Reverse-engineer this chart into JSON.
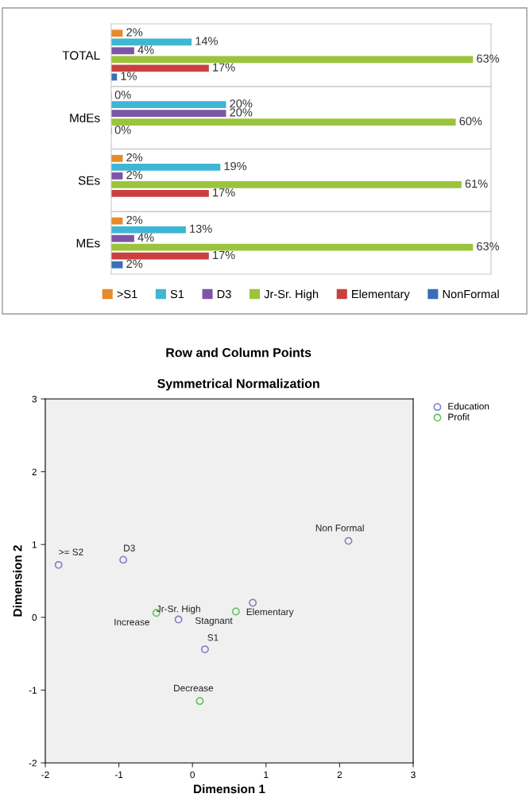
{
  "chart_data": [
    {
      "type": "bar",
      "orientation": "horizontal",
      "categories": [
        "TOTAL",
        "MdEs",
        "SEs",
        "MEs"
      ],
      "legend": "bottom",
      "series": [
        {
          "name": ">S1",
          "color": "#e8892a",
          "values": [
            2,
            0,
            2,
            2
          ],
          "value_labels": [
            "2%",
            "0%",
            "2%",
            "2%"
          ]
        },
        {
          "name": "S1",
          "color": "#3fb6d3",
          "values": [
            14,
            20,
            19,
            13
          ],
          "value_labels": [
            "14%",
            "20%",
            "19%",
            "13%"
          ]
        },
        {
          "name": "D3",
          "color": "#7d55a6",
          "values": [
            4,
            20,
            2,
            4
          ],
          "value_labels": [
            "4%",
            "20%",
            "2%",
            "4%"
          ]
        },
        {
          "name": "Jr-Sr. High",
          "color": "#9bc43c",
          "values": [
            63,
            60,
            61,
            63
          ],
          "value_labels": [
            "63%",
            "60%",
            "61%",
            "63%"
          ]
        },
        {
          "name": "Elementary",
          "color": "#c9403f",
          "values": [
            17,
            0,
            17,
            17
          ],
          "value_labels": [
            "17%",
            "0%",
            "17%",
            "17%"
          ]
        },
        {
          "name": "NonFormal",
          "color": "#3a6fb6",
          "values": [
            1,
            null,
            null,
            2
          ],
          "value_labels": [
            "1%",
            null,
            null,
            "2%"
          ]
        }
      ]
    },
    {
      "type": "scatter",
      "title": "Row and Column Points",
      "subtitle": "Symmetrical Normalization",
      "xlabel": "Dimension 1",
      "ylabel": "Dimension 2",
      "xlim": [
        -2,
        3
      ],
      "ylim": [
        -2,
        3
      ],
      "xticks": [
        -2,
        -1,
        0,
        1,
        2,
        3
      ],
      "yticks": [
        -2,
        -1,
        0,
        1,
        2,
        3
      ],
      "marker": "circle",
      "legend": "top right",
      "grid": false,
      "series": [
        {
          "name": "Education",
          "color": "#7b7fc4",
          "x": [
            -1.82,
            -0.94,
            -0.19,
            0.17,
            0.82,
            2.12
          ],
          "values": [
            0.72,
            0.79,
            -0.03,
            -0.44,
            0.2,
            1.05
          ]
        },
        {
          "name": "Profit",
          "color": "#5fbf5f",
          "x": [
            -0.49,
            0.59,
            0.1
          ],
          "values": [
            0.06,
            0.08,
            -1.15
          ]
        }
      ],
      "annotations": [
        {
          "text": ">= S2",
          "x": -1.82,
          "y": 0.72
        },
        {
          "text": "D3",
          "x": -0.94,
          "y": 0.79
        },
        {
          "text": "Jr-Sr. High",
          "x": -0.19,
          "y": -0.03
        },
        {
          "text": "S1",
          "x": 0.17,
          "y": -0.44
        },
        {
          "text": "Elementary",
          "x": 0.82,
          "y": 0.2
        },
        {
          "text": "Non Formal",
          "x": 2.12,
          "y": 1.05
        },
        {
          "text": "Increase",
          "x": -0.49,
          "y": 0.06
        },
        {
          "text": "Stagnant",
          "x": 0.59,
          "y": 0.08
        },
        {
          "text": "Decrease",
          "x": 0.1,
          "y": -1.15
        }
      ]
    }
  ]
}
